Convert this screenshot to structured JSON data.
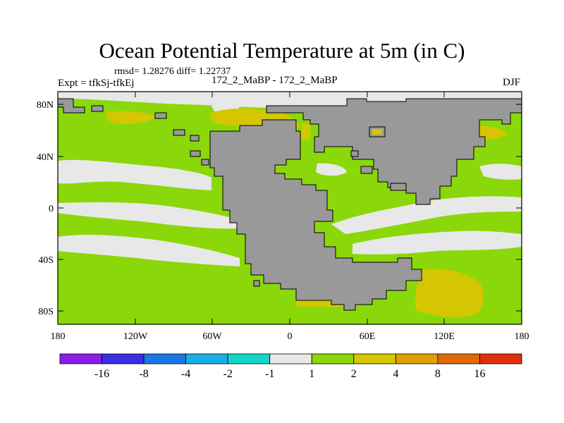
{
  "title": "Ocean Potential Temperature at 5m (in C)",
  "stats": "rmsd= 1.28276 diff= 1.22737",
  "experiment": "Expt = tfkSj-tfkEj",
  "subtitle": "172_2_MaBP - 172_2_MaBP",
  "season": "DJF",
  "lat_labels": [
    "80N",
    "40N",
    "0",
    "40S",
    "80S"
  ],
  "lon_labels": [
    "180",
    "120W",
    "60W",
    "0",
    "60E",
    "120E",
    "180"
  ],
  "colorbar": {
    "labels": [
      "-16",
      "-8",
      "-4",
      "-2",
      "-1",
      "1",
      "2",
      "4",
      "8",
      "16"
    ],
    "colors": [
      "#8a1ee6",
      "#3c2ee0",
      "#1a78e6",
      "#19aee6",
      "#13d6c8",
      "#e8e8e8",
      "#8ad80a",
      "#d4c600",
      "#e0a000",
      "#e06a00",
      "#e0300a"
    ]
  },
  "colors": {
    "land": "#999999",
    "land_outline": "#000000",
    "near_zero": "#e8e8e8",
    "band_1_2": "#8ad80a",
    "band_2_4": "#d4c600"
  }
}
